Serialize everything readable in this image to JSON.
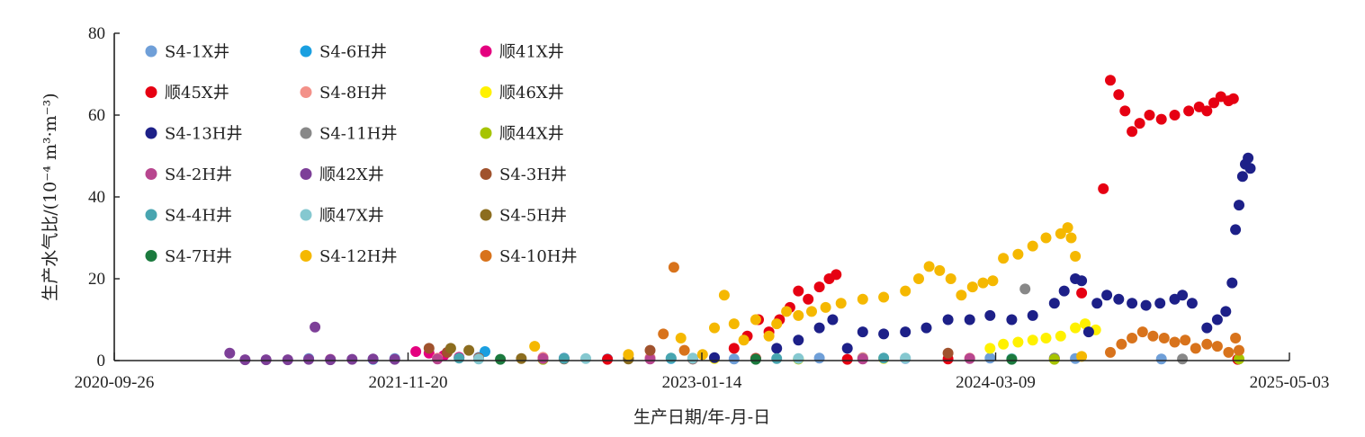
{
  "chart_data": {
    "type": "scatter",
    "title": "",
    "xlabel": "生产日期/年-月-日",
    "ylabel": "生产水气比/(10⁻⁴ m³·m⁻³)",
    "x_type": "date",
    "xlim": [
      "2020-09-26",
      "2025-05-03"
    ],
    "x_ticks": [
      "2020-09-26",
      "2021-11-20",
      "2023-01-14",
      "2024-03-09",
      "2025-05-03"
    ],
    "ylim": [
      0,
      80
    ],
    "y_ticks": [
      0,
      20,
      40,
      60,
      80
    ],
    "grid": false,
    "legend_position": "top-left",
    "series": [
      {
        "name": "S4-1X井",
        "color": "#6f9fd8",
        "points": [
          [
            "2021-07-01",
            0.5
          ],
          [
            "2021-11-01",
            0.5
          ],
          [
            "2022-03-01",
            0.8
          ],
          [
            "2022-07-01",
            0.6
          ],
          [
            "2022-11-01",
            0.5
          ],
          [
            "2023-03-01",
            0.4
          ],
          [
            "2023-07-01",
            0.6
          ],
          [
            "2023-11-01",
            0.5
          ],
          [
            "2024-03-01",
            0.6
          ],
          [
            "2024-07-01",
            0.5
          ],
          [
            "2024-11-01",
            0.4
          ]
        ]
      },
      {
        "name": "S4-6H井",
        "color": "#1a9fe0",
        "points": [
          [
            "2021-10-01",
            0.3
          ],
          [
            "2022-01-01",
            0.5
          ],
          [
            "2022-03-10",
            2.2
          ],
          [
            "2022-06-01",
            0.6
          ],
          [
            "2022-09-01",
            0.4
          ],
          [
            "2022-12-01",
            0.5
          ]
        ]
      },
      {
        "name": "顺41X井",
        "color": "#e4007f",
        "points": [
          [
            "2021-12-01",
            2.2
          ],
          [
            "2021-12-20",
            1.8
          ],
          [
            "2022-01-10",
            1.2
          ],
          [
            "2022-02-01",
            0.8
          ],
          [
            "2022-03-01",
            0.5
          ],
          [
            "2022-06-01",
            0.4
          ]
        ]
      },
      {
        "name": "顺45X井",
        "color": "#e60012",
        "points": [
          [
            "2022-09-01",
            0.3
          ],
          [
            "2023-01-01",
            0.4
          ],
          [
            "2023-03-01",
            3
          ],
          [
            "2023-03-20",
            6
          ],
          [
            "2023-04-05",
            10
          ],
          [
            "2023-04-20",
            7
          ],
          [
            "2023-05-05",
            10
          ],
          [
            "2023-05-20",
            13
          ],
          [
            "2023-06-01",
            17
          ],
          [
            "2023-06-15",
            15
          ],
          [
            "2023-07-01",
            18
          ],
          [
            "2023-07-15",
            20
          ],
          [
            "2023-07-25",
            21
          ],
          [
            "2023-08-10",
            0.3
          ],
          [
            "2024-01-01",
            0.4
          ],
          [
            "2024-06-01",
            0.5
          ],
          [
            "2024-07-10",
            16.5
          ],
          [
            "2024-08-10",
            42
          ],
          [
            "2024-08-20",
            68.5
          ],
          [
            "2024-09-01",
            65
          ],
          [
            "2024-09-10",
            61
          ],
          [
            "2024-09-20",
            56
          ],
          [
            "2024-10-01",
            58
          ],
          [
            "2024-10-15",
            60
          ],
          [
            "2024-11-01",
            59
          ],
          [
            "2024-11-20",
            60
          ],
          [
            "2024-12-10",
            61
          ],
          [
            "2024-12-25",
            62
          ],
          [
            "2025-01-05",
            61
          ],
          [
            "2025-01-15",
            63
          ],
          [
            "2025-01-25",
            64.5
          ],
          [
            "2025-02-05",
            63.5
          ],
          [
            "2025-02-12",
            64
          ],
          [
            "2025-02-18",
            0.3
          ]
        ]
      },
      {
        "name": "S4-8H井",
        "color": "#f39189",
        "points": [
          [
            "2022-01-01",
            0.6
          ],
          [
            "2022-06-01",
            0.8
          ],
          [
            "2022-11-01",
            0.7
          ],
          [
            "2023-04-01",
            0.6
          ],
          [
            "2023-09-01",
            0.7
          ],
          [
            "2024-02-01",
            0.6
          ]
        ]
      },
      {
        "name": "顺46X井",
        "color": "#fff100",
        "points": [
          [
            "2023-02-01",
            0.5
          ],
          [
            "2023-06-01",
            0.4
          ],
          [
            "2023-10-01",
            0.5
          ],
          [
            "2024-03-01",
            3
          ],
          [
            "2024-03-20",
            4
          ],
          [
            "2024-04-10",
            4.5
          ],
          [
            "2024-05-01",
            5
          ],
          [
            "2024-05-20",
            5.5
          ],
          [
            "2024-06-10",
            6
          ],
          [
            "2024-07-01",
            8
          ],
          [
            "2024-07-15",
            9
          ],
          [
            "2024-07-30",
            7.5
          ]
        ]
      },
      {
        "name": "S4-13H井",
        "color": "#1d2088",
        "points": [
          [
            "2022-10-01",
            0.5
          ],
          [
            "2023-02-01",
            0.7
          ],
          [
            "2023-05-01",
            3
          ],
          [
            "2023-06-01",
            5
          ],
          [
            "2023-07-01",
            8
          ],
          [
            "2023-07-20",
            10
          ],
          [
            "2023-08-10",
            3
          ],
          [
            "2023-09-01",
            7
          ],
          [
            "2023-10-01",
            6.5
          ],
          [
            "2023-11-01",
            7
          ],
          [
            "2023-12-01",
            8
          ],
          [
            "2024-01-01",
            10
          ],
          [
            "2024-02-01",
            10
          ],
          [
            "2024-03-01",
            11
          ],
          [
            "2024-04-01",
            10
          ],
          [
            "2024-05-01",
            11
          ],
          [
            "2024-06-01",
            14
          ],
          [
            "2024-06-15",
            17
          ],
          [
            "2024-07-01",
            20
          ],
          [
            "2024-07-10",
            19.5
          ],
          [
            "2024-07-20",
            7
          ],
          [
            "2024-08-01",
            14
          ],
          [
            "2024-08-15",
            16
          ],
          [
            "2024-09-01",
            15
          ],
          [
            "2024-09-20",
            14
          ],
          [
            "2024-10-10",
            13.5
          ],
          [
            "2024-10-30",
            14
          ],
          [
            "2024-11-20",
            15
          ],
          [
            "2024-12-01",
            16
          ],
          [
            "2024-12-15",
            14
          ],
          [
            "2025-01-05",
            8
          ],
          [
            "2025-01-20",
            10
          ],
          [
            "2025-02-01",
            12
          ],
          [
            "2025-02-10",
            19
          ],
          [
            "2025-02-15",
            32
          ],
          [
            "2025-02-20",
            38
          ],
          [
            "2025-02-25",
            45
          ],
          [
            "2025-03-01",
            48
          ],
          [
            "2025-03-05",
            49.5
          ],
          [
            "2025-03-08",
            47
          ]
        ]
      },
      {
        "name": "S4-11H井",
        "color": "#888888",
        "points": [
          [
            "2022-06-01",
            0.3
          ],
          [
            "2023-01-01",
            0.4
          ],
          [
            "2023-09-01",
            0.5
          ],
          [
            "2024-04-20",
            17.5
          ],
          [
            "2024-06-01",
            0.6
          ],
          [
            "2024-12-01",
            0.4
          ]
        ]
      },
      {
        "name": "顺44X井",
        "color": "#a6c400",
        "points": [
          [
            "2022-06-01",
            0.3
          ],
          [
            "2023-06-01",
            0.4
          ],
          [
            "2024-06-01",
            0.3
          ],
          [
            "2025-02-20",
            0.4
          ]
        ]
      },
      {
        "name": "S4-2H井",
        "color": "#b8468f",
        "points": [
          [
            "2021-08-01",
            0.3
          ],
          [
            "2022-01-01",
            0.4
          ],
          [
            "2022-06-01",
            0.5
          ],
          [
            "2022-11-01",
            0.4
          ],
          [
            "2023-04-01",
            0.5
          ],
          [
            "2023-09-01",
            0.4
          ],
          [
            "2024-02-01",
            0.5
          ]
        ]
      },
      {
        "name": "顺42X井",
        "color": "#7d3f98",
        "points": [
          [
            "2021-03-10",
            1.8
          ],
          [
            "2021-04-01",
            0.2
          ],
          [
            "2021-05-01",
            0.2
          ],
          [
            "2021-06-01",
            0.2
          ],
          [
            "2021-07-01",
            0.3
          ],
          [
            "2021-08-01",
            0.2
          ],
          [
            "2021-09-01",
            0.3
          ],
          [
            "2021-07-10",
            8.2
          ],
          [
            "2021-10-01",
            0.4
          ],
          [
            "2021-11-01",
            0.3
          ]
        ]
      },
      {
        "name": "S4-3H井",
        "color": "#a0522d",
        "points": [
          [
            "2021-12-20",
            3.0
          ],
          [
            "2022-01-15",
            2.0
          ],
          [
            "2022-03-01",
            0.6
          ],
          [
            "2022-07-01",
            0.4
          ],
          [
            "2022-11-01",
            2.5
          ],
          [
            "2023-04-01",
            0.5
          ],
          [
            "2024-01-01",
            1.8
          ]
        ]
      },
      {
        "name": "S4-4H井",
        "color": "#48a5b0",
        "points": [
          [
            "2022-02-01",
            0.6
          ],
          [
            "2022-07-01",
            0.5
          ],
          [
            "2022-12-01",
            0.6
          ],
          [
            "2023-05-01",
            0.5
          ],
          [
            "2023-10-01",
            0.6
          ]
        ]
      },
      {
        "name": "顺47X井",
        "color": "#85c8d0",
        "points": [
          [
            "2022-03-01",
            0.4
          ],
          [
            "2022-08-01",
            0.5
          ],
          [
            "2023-01-01",
            0.6
          ],
          [
            "2023-06-01",
            0.5
          ],
          [
            "2023-11-01",
            0.6
          ],
          [
            "2024-04-01",
            0.5
          ]
        ]
      },
      {
        "name": "S4-5H井",
        "color": "#8c6d1f",
        "points": [
          [
            "2022-01-20",
            3.0
          ],
          [
            "2022-02-15",
            2.5
          ],
          [
            "2022-05-01",
            0.5
          ],
          [
            "2022-10-01",
            0.4
          ]
        ]
      },
      {
        "name": "S4-7H井",
        "color": "#1b7a3e",
        "points": [
          [
            "2022-04-01",
            0.3
          ],
          [
            "2023-04-01",
            0.3
          ],
          [
            "2024-04-01",
            0.3
          ]
        ]
      },
      {
        "name": "S4-12H井",
        "color": "#f5b800",
        "points": [
          [
            "2022-05-20",
            3.5
          ],
          [
            "2022-10-01",
            1.5
          ],
          [
            "2022-12-15",
            5.5
          ],
          [
            "2023-01-15",
            1.5
          ],
          [
            "2023-02-01",
            8
          ],
          [
            "2023-02-15",
            16
          ],
          [
            "2023-03-01",
            9
          ],
          [
            "2023-03-15",
            5
          ],
          [
            "2023-04-01",
            10
          ],
          [
            "2023-04-20",
            6
          ],
          [
            "2023-05-01",
            9
          ],
          [
            "2023-05-15",
            12
          ],
          [
            "2023-06-01",
            11
          ],
          [
            "2023-06-20",
            12
          ],
          [
            "2023-07-10",
            13
          ],
          [
            "2023-08-01",
            14
          ],
          [
            "2023-09-01",
            15
          ],
          [
            "2023-10-01",
            15.5
          ],
          [
            "2023-11-01",
            17
          ],
          [
            "2023-11-20",
            20
          ],
          [
            "2023-12-05",
            23
          ],
          [
            "2023-12-20",
            22
          ],
          [
            "2024-01-05",
            20
          ],
          [
            "2024-01-20",
            16
          ],
          [
            "2024-02-05",
            18
          ],
          [
            "2024-02-20",
            19
          ],
          [
            "2024-03-05",
            19.5
          ],
          [
            "2024-03-20",
            25
          ],
          [
            "2024-04-10",
            26
          ],
          [
            "2024-05-01",
            28
          ],
          [
            "2024-05-20",
            30
          ],
          [
            "2024-06-10",
            31
          ],
          [
            "2024-06-20",
            32.5
          ],
          [
            "2024-06-25",
            30
          ],
          [
            "2024-07-01",
            25.5
          ],
          [
            "2024-07-10",
            1
          ]
        ]
      },
      {
        "name": "S4-10H井",
        "color": "#d8731c",
        "points": [
          [
            "2022-11-20",
            6.5
          ],
          [
            "2022-12-05",
            22.8
          ],
          [
            "2022-12-20",
            2.5
          ],
          [
            "2024-08-20",
            2
          ],
          [
            "2024-09-05",
            4
          ],
          [
            "2024-09-20",
            5.5
          ],
          [
            "2024-10-05",
            7
          ],
          [
            "2024-10-20",
            6
          ],
          [
            "2024-11-05",
            5.5
          ],
          [
            "2024-11-20",
            4.5
          ],
          [
            "2024-12-05",
            5
          ],
          [
            "2024-12-20",
            3
          ],
          [
            "2025-01-05",
            4
          ],
          [
            "2025-01-20",
            3.5
          ],
          [
            "2025-02-05",
            2
          ],
          [
            "2025-02-15",
            5.5
          ],
          [
            "2025-02-20",
            2.5
          ]
        ]
      }
    ]
  }
}
